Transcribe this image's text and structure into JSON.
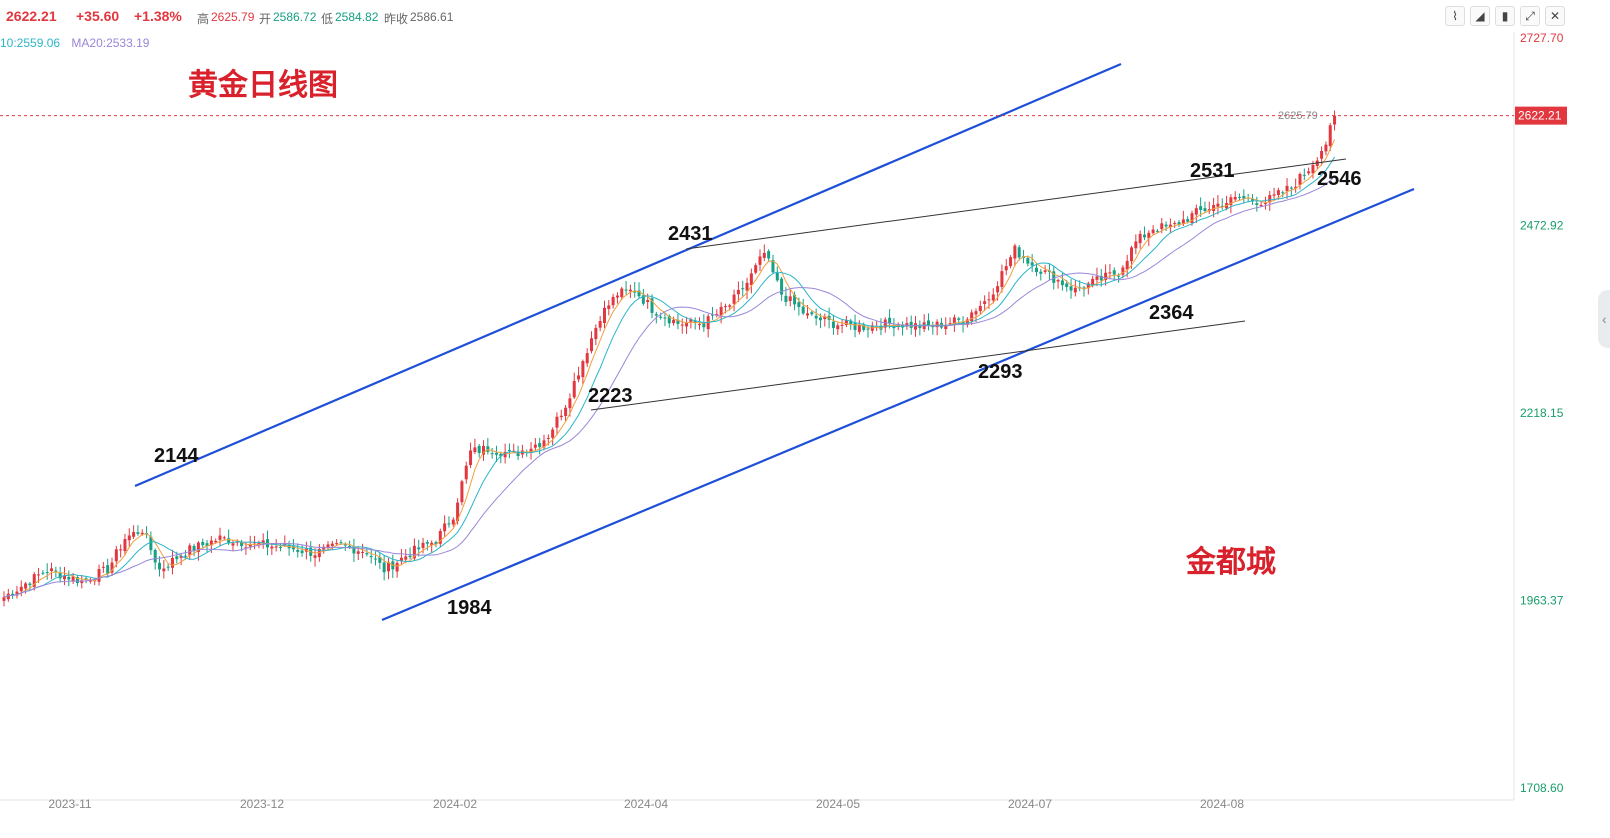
{
  "header": {
    "price": "2622.21",
    "change": "+35.60",
    "change_pct": "+1.38%",
    "high_label": "高",
    "high": "2625.79",
    "open_label": "开",
    "open": "2586.72",
    "low_label": "低",
    "low": "2584.82",
    "prev_close_label": "昨收",
    "prev_close": "2586.61"
  },
  "ma_legend": {
    "ma10": "10:2559.06",
    "ma20": "MA20:2533.19"
  },
  "toolbar": {
    "icons": [
      "line-chart-icon",
      "area-chart-icon",
      "candle-chart-icon",
      "expand-icon",
      "close-icon"
    ]
  },
  "colors": {
    "up": "#e2373f",
    "down": "#16a085",
    "ma5": "#f0a040",
    "ma10": "#2bb5c8",
    "ma20": "#9a86d8",
    "trend_channel": "#1e4fd8",
    "trend_thin": "#333333",
    "title": "#d9212b"
  },
  "chart_data": {
    "type": "candlestick",
    "title": "黄金日线图",
    "watermark": "金都城",
    "y_ticks": [
      "2727.70",
      "2472.92",
      "2218.15",
      "1963.37",
      "1708.60"
    ],
    "y_tick_values": [
      2727.7,
      2472.92,
      2218.15,
      1963.37,
      1708.6
    ],
    "ylim": [
      1708.6,
      2727.7
    ],
    "current_price_tag": "2622.21",
    "current_price": 2622.21,
    "high_marker": "2625.79",
    "high_marker_value": 2625.79,
    "x_ticks": [
      "2023-11",
      "2023-12",
      "2024-02",
      "2024-04",
      "2024-05",
      "2024-07",
      "2024-08"
    ],
    "annotations": [
      {
        "text": "2144",
        "value": 2144
      },
      {
        "text": "1984",
        "value": 1984
      },
      {
        "text": "2223",
        "value": 2223
      },
      {
        "text": "2431",
        "value": 2431
      },
      {
        "text": "2293",
        "value": 2293
      },
      {
        "text": "2364",
        "value": 2364
      },
      {
        "text": "2531",
        "value": 2531
      },
      {
        "text": "2546",
        "value": 2546
      }
    ],
    "trendlines": [
      "upper-channel",
      "lower-channel",
      "upper-thin",
      "lower-thin"
    ],
    "anchors": [
      [
        0,
        1968
      ],
      [
        10,
        2005
      ],
      [
        18,
        1990
      ],
      [
        24,
        2005
      ],
      [
        28,
        2048
      ],
      [
        32,
        2060
      ],
      [
        36,
        2005
      ],
      [
        42,
        2030
      ],
      [
        50,
        2048
      ],
      [
        58,
        2040
      ],
      [
        66,
        2035
      ],
      [
        72,
        2028
      ],
      [
        78,
        2038
      ],
      [
        84,
        2030
      ],
      [
        88,
        2005
      ],
      [
        94,
        2028
      ],
      [
        100,
        2045
      ],
      [
        104,
        2080
      ],
      [
        108,
        2165
      ],
      [
        112,
        2170
      ],
      [
        118,
        2162
      ],
      [
        124,
        2178
      ],
      [
        126,
        2188
      ],
      [
        130,
        2230
      ],
      [
        134,
        2290
      ],
      [
        138,
        2350
      ],
      [
        142,
        2380
      ],
      [
        146,
        2385
      ],
      [
        150,
        2360
      ],
      [
        156,
        2340
      ],
      [
        162,
        2340
      ],
      [
        168,
        2365
      ],
      [
        172,
        2395
      ],
      [
        176,
        2435
      ],
      [
        180,
        2380
      ],
      [
        186,
        2350
      ],
      [
        192,
        2340
      ],
      [
        198,
        2335
      ],
      [
        206,
        2340
      ],
      [
        214,
        2335
      ],
      [
        222,
        2345
      ],
      [
        228,
        2375
      ],
      [
        234,
        2440
      ],
      [
        238,
        2420
      ],
      [
        242,
        2405
      ],
      [
        248,
        2385
      ],
      [
        254,
        2400
      ],
      [
        258,
        2410
      ],
      [
        262,
        2450
      ],
      [
        266,
        2470
      ],
      [
        270,
        2470
      ],
      [
        276,
        2490
      ],
      [
        280,
        2500
      ],
      [
        286,
        2510
      ],
      [
        292,
        2505
      ],
      [
        298,
        2525
      ],
      [
        302,
        2550
      ],
      [
        306,
        2585
      ],
      [
        308,
        2620
      ]
    ]
  }
}
